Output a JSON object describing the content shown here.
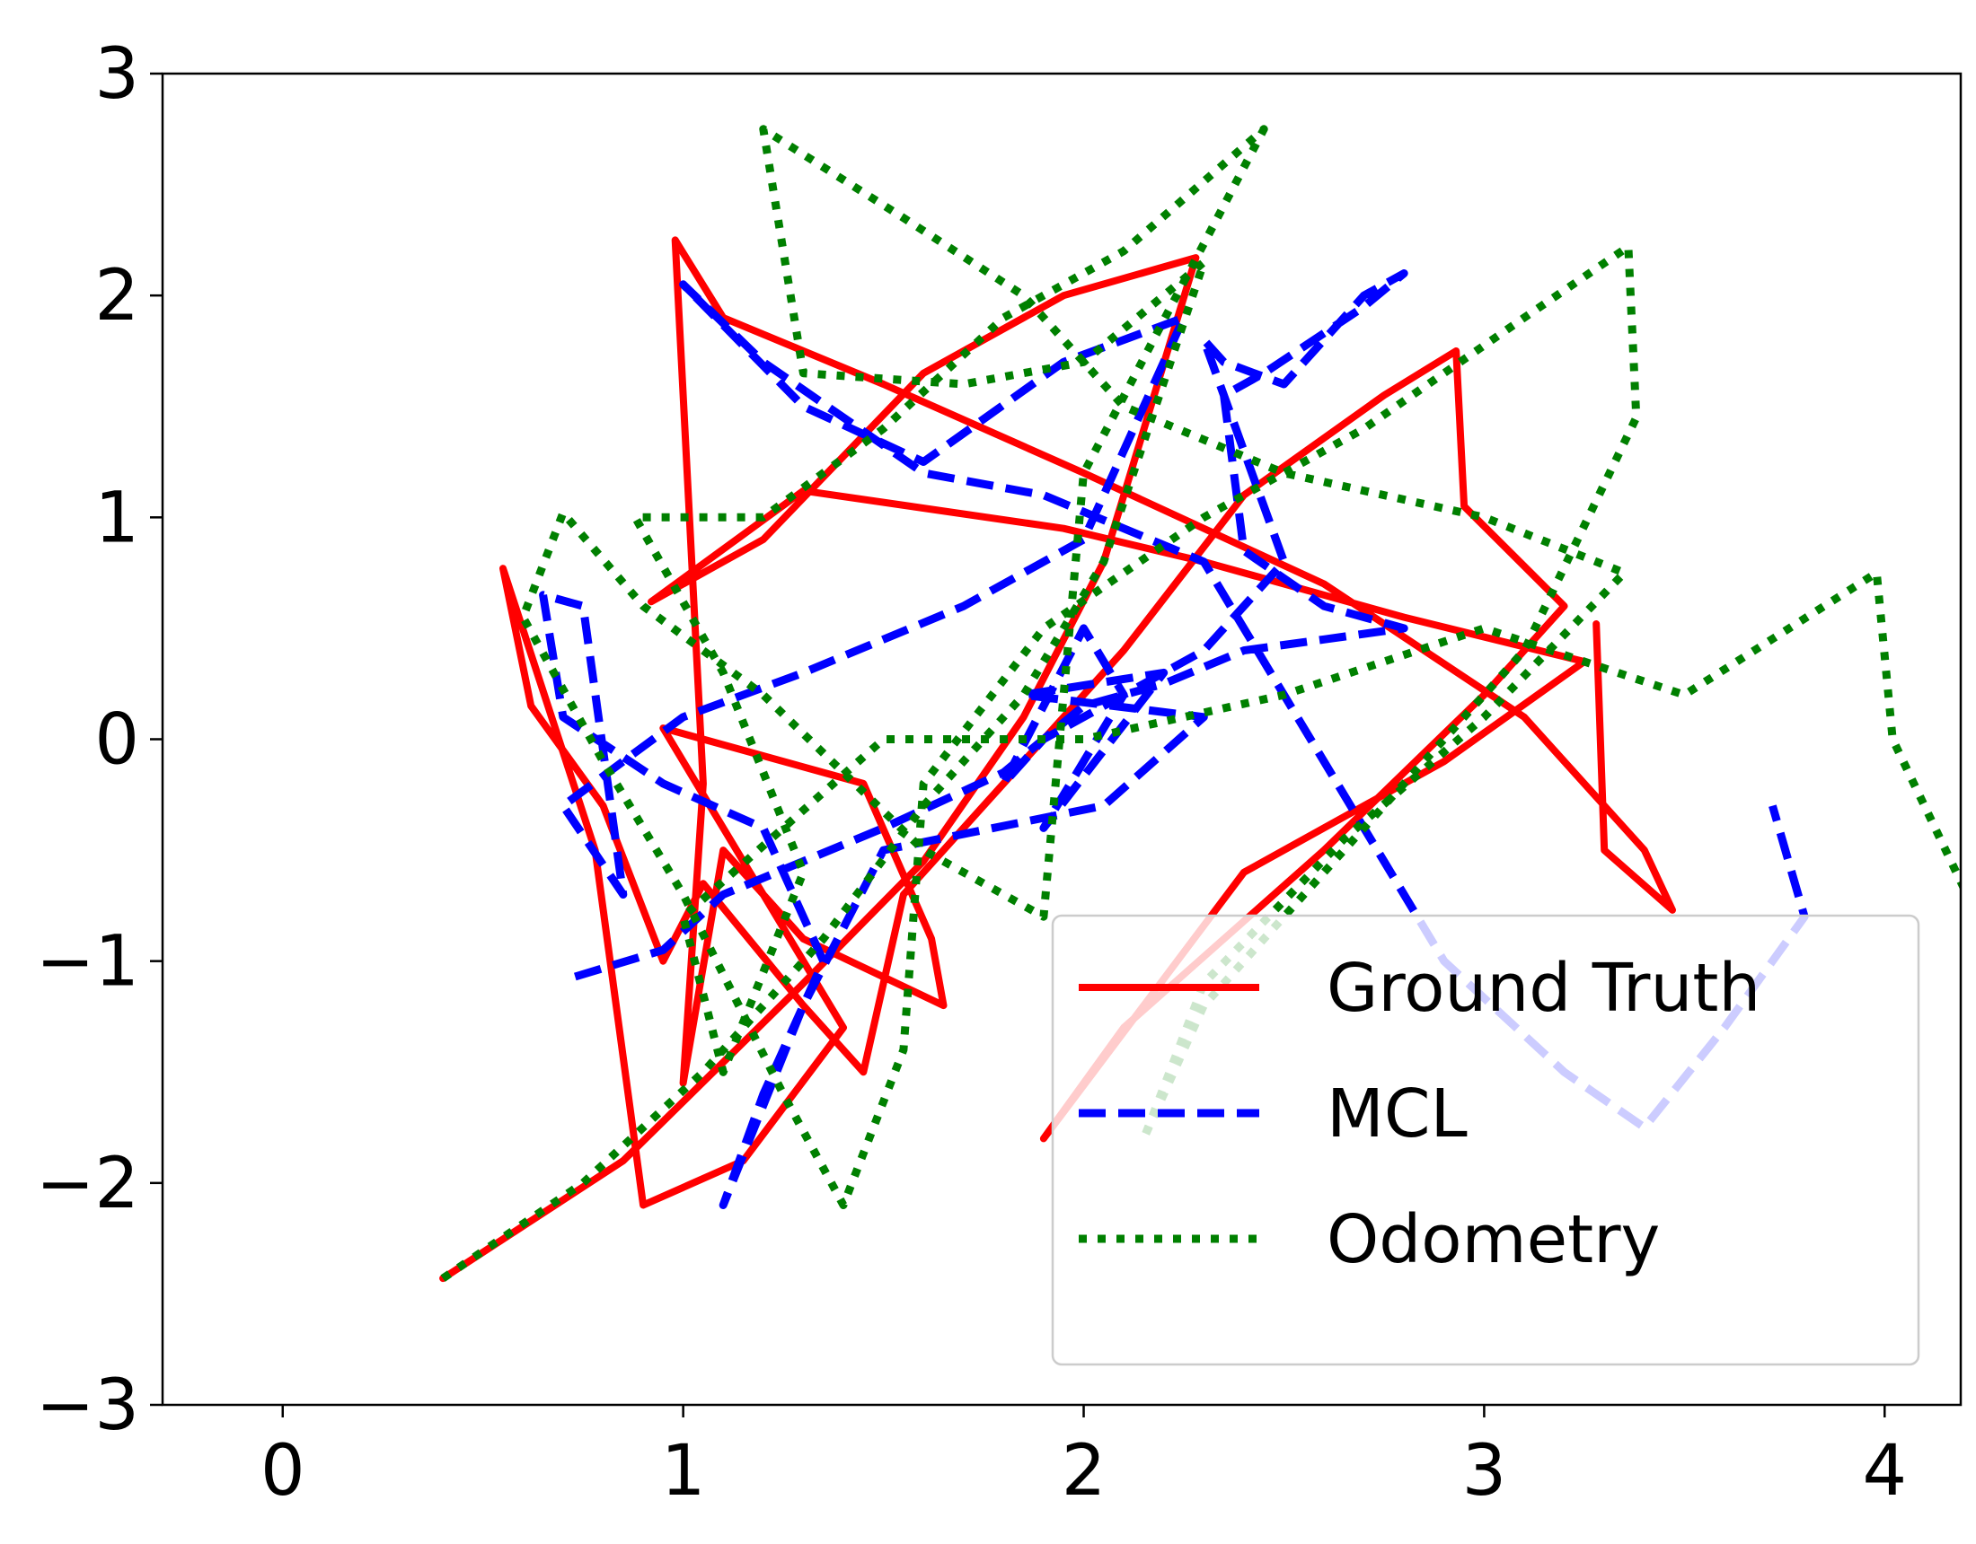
{
  "chart_data": {
    "type": "line",
    "xlim": [
      -0.3,
      4.19
    ],
    "ylim": [
      -3,
      3
    ],
    "xticks": [
      0,
      1,
      2,
      3,
      4
    ],
    "yticks": [
      {
        "value": -3,
        "label": "−3"
      },
      {
        "value": -2,
        "label": "−2"
      },
      {
        "value": -1,
        "label": "−1"
      },
      0,
      1,
      2,
      3
    ],
    "legend": "lower right",
    "series": [
      {
        "name": "Ground Truth",
        "color": "#ff0000",
        "linestyle": "solid",
        "x": [
          0.4,
          0.85,
          1.3,
          1.6,
          1.85,
          2.05,
          2.28,
          1.95,
          1.6,
          1.2,
          0.92,
          1.3,
          1.95,
          2.3,
          2.8,
          3.25,
          2.9,
          2.4,
          1.9,
          2.1,
          2.6,
          3.0,
          3.2,
          2.95,
          2.93,
          2.75,
          2.4,
          2.1,
          1.8,
          1.55,
          1.45,
          1.3,
          1.05,
          0.95,
          0.8,
          0.62,
          0.55,
          0.78,
          0.9,
          1.15,
          1.4,
          0.95,
          1.45,
          1.62,
          1.65,
          1.3,
          1.1,
          1.0,
          1.05,
          0.98,
          1.1,
          1.5,
          2.0,
          2.6,
          3.1,
          3.4,
          3.47,
          3.3,
          3.28
        ],
        "values": [
          -2.43,
          -1.9,
          -1.1,
          -0.55,
          0.1,
          0.8,
          2.17,
          2.0,
          1.65,
          0.9,
          0.62,
          1.12,
          0.95,
          0.8,
          0.55,
          0.35,
          -0.1,
          -0.6,
          -1.8,
          -1.3,
          -0.5,
          0.2,
          0.6,
          1.05,
          1.75,
          1.55,
          1.1,
          0.4,
          -0.2,
          -0.7,
          -1.5,
          -1.2,
          -0.65,
          -1.0,
          -0.3,
          0.15,
          0.77,
          -0.5,
          -2.1,
          -1.9,
          -1.3,
          0.05,
          -0.2,
          -0.9,
          -1.2,
          -0.9,
          -0.5,
          -1.55,
          -0.2,
          2.25,
          1.9,
          1.6,
          1.2,
          0.7,
          0.1,
          -0.5,
          -0.77,
          -0.5,
          0.52
        ]
      },
      {
        "name": "MCL",
        "color": "#0000ff",
        "linestyle": "dashed",
        "x": [
          0.73,
          0.95,
          1.1,
          1.5,
          1.8,
          2.0,
          2.2,
          2.4,
          2.6,
          2.8,
          2.6,
          2.4,
          2.35,
          2.45,
          2.7,
          2.8,
          2.7,
          2.5,
          2.35,
          2.3,
          2.4,
          2.5,
          2.3,
          2.1,
          1.9,
          1.8,
          2.0,
          2.1,
          1.9,
          2.2,
          1.85,
          2.3,
          2.05,
          1.5,
          1.3,
          1.1,
          1.2,
          1.35,
          1.2,
          0.95,
          0.7,
          0.65,
          0.75,
          0.85,
          0.7,
          1.0,
          1.3,
          1.7,
          2.0,
          2.25,
          1.95,
          1.6,
          1.3,
          1.0,
          1.2,
          1.6,
          1.9,
          2.3,
          2.5,
          2.7,
          2.9,
          3.2,
          3.4,
          3.6,
          3.8,
          3.72
        ],
        "values": [
          -1.07,
          -0.95,
          -0.7,
          -0.4,
          -0.15,
          0.15,
          0.25,
          0.4,
          0.45,
          0.5,
          0.6,
          0.85,
          1.55,
          1.65,
          1.95,
          2.1,
          2.0,
          1.6,
          1.7,
          1.8,
          1.3,
          0.8,
          0.4,
          0.2,
          0.0,
          -0.2,
          0.5,
          0.2,
          -0.4,
          0.3,
          0.2,
          0.1,
          -0.3,
          -0.5,
          -1.2,
          -2.1,
          -1.6,
          -1.0,
          -0.4,
          -0.2,
          0.1,
          0.65,
          0.6,
          -0.7,
          -0.3,
          0.1,
          0.3,
          0.6,
          0.9,
          1.9,
          1.7,
          1.25,
          1.5,
          2.05,
          1.7,
          1.2,
          1.1,
          0.8,
          0.2,
          -0.4,
          -1.0,
          -1.5,
          -1.75,
          -1.3,
          -0.8,
          -0.3
        ]
      },
      {
        "name": "Odometry",
        "color": "#008000",
        "linestyle": "dotted",
        "x": [
          0.4,
          0.75,
          1.05,
          1.35,
          1.6,
          1.85,
          2.05,
          2.3,
          2.0,
          1.7,
          1.3,
          1.2,
          1.55,
          1.85,
          2.1,
          2.5,
          3.0,
          3.35,
          3.0,
          2.65,
          2.3,
          2.15,
          2.3,
          2.7,
          3.1,
          3.38,
          3.36,
          3.1,
          2.7,
          2.3,
          1.9,
          1.6,
          1.55,
          1.4,
          1.25,
          1.0,
          0.8,
          0.6,
          0.7,
          0.9,
          1.2,
          1.6,
          1.9,
          2.0,
          2.45,
          2.1,
          1.8,
          1.5,
          1.2,
          0.88,
          1.1,
          1.3,
          1.1,
          1.0,
          1.5,
          2.0,
          2.5,
          3.0,
          3.5,
          3.98,
          4.02,
          4.2
        ],
        "values": [
          -2.43,
          -2.0,
          -1.5,
          -0.9,
          -0.3,
          0.2,
          0.8,
          2.15,
          1.7,
          1.6,
          1.65,
          2.75,
          2.35,
          2.0,
          1.5,
          1.2,
          1.0,
          0.75,
          0.1,
          -0.45,
          -1.1,
          -1.8,
          -1.2,
          -0.4,
          0.4,
          1.45,
          2.22,
          1.9,
          1.4,
          1.0,
          0.5,
          -0.2,
          -1.4,
          -2.1,
          -1.6,
          -0.7,
          -0.1,
          0.55,
          1.02,
          0.6,
          0.2,
          -0.5,
          -0.8,
          1.2,
          2.75,
          2.2,
          1.9,
          1.4,
          1.0,
          1.0,
          0.3,
          -0.6,
          -1.5,
          -0.8,
          0.0,
          0.0,
          0.2,
          0.5,
          0.2,
          0.75,
          0.0,
          -0.68
        ]
      }
    ]
  }
}
